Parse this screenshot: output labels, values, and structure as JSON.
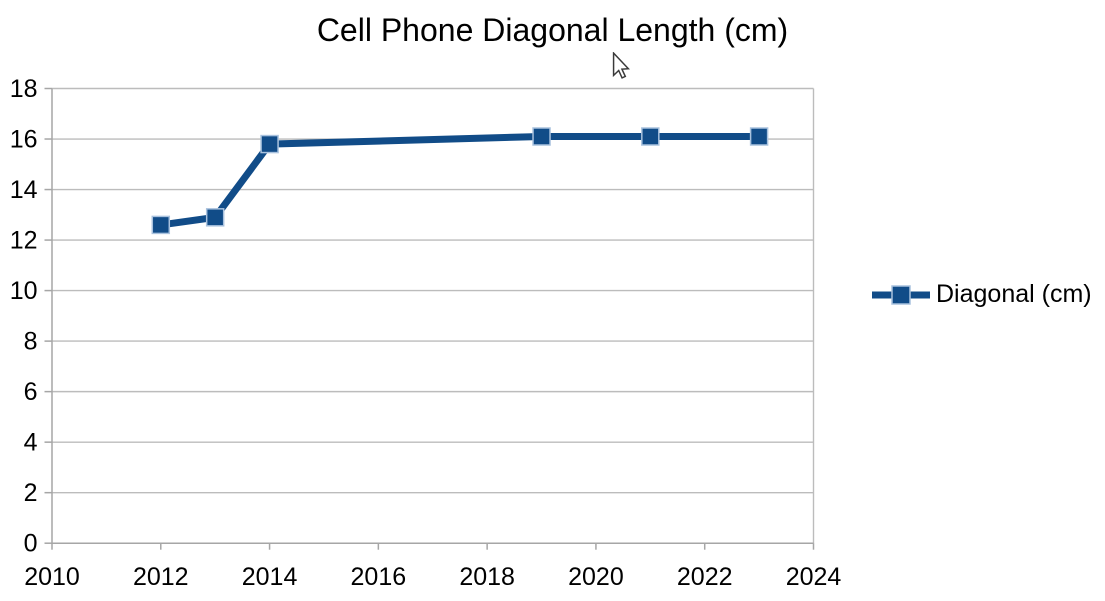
{
  "chart_data": {
    "type": "line",
    "title": "Cell Phone Diagonal Length (cm)",
    "x": [
      2012,
      2013,
      2014,
      2019,
      2021,
      2023
    ],
    "series": [
      {
        "name": "Diagonal (cm)",
        "values": [
          12.6,
          12.9,
          15.8,
          16.1,
          16.1,
          16.1
        ]
      }
    ],
    "xlabel": "",
    "ylabel": "",
    "xlim": [
      2010,
      2024
    ],
    "ylim": [
      0,
      18
    ],
    "x_ticks": [
      2010,
      2012,
      2014,
      2016,
      2018,
      2020,
      2022,
      2024
    ],
    "y_ticks": [
      0,
      2,
      4,
      6,
      8,
      10,
      12,
      14,
      16,
      18
    ],
    "grid": "horizontal-only",
    "plot_border": "right-edge-line",
    "legend_position": "right-middle",
    "marker": "square",
    "colors": {
      "series": "#114c88",
      "marker_edge": "#a9c2de",
      "gridline": "#bcbcbc",
      "axis": "#a6a6a6",
      "text": "#000000",
      "background": "#ffffff"
    }
  },
  "icons": {
    "pointer": "arrow-cursor"
  }
}
